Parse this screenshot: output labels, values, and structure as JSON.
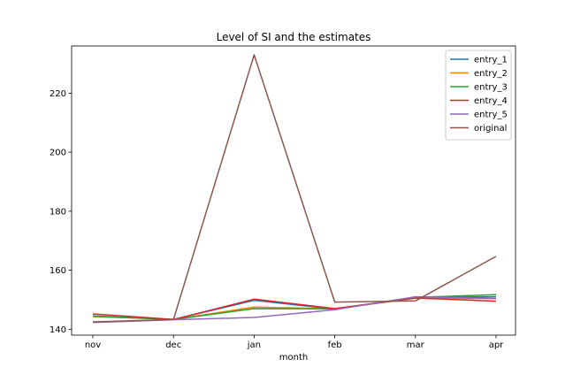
{
  "chart_data": {
    "type": "line",
    "title": "Level of SI and the estimates",
    "xlabel": "month",
    "ylabel": "",
    "categories": [
      "nov",
      "dec",
      "jan",
      "feb",
      "mar",
      "apr"
    ],
    "yticks": [
      140,
      160,
      180,
      200,
      220
    ],
    "ylim": [
      138,
      236
    ],
    "grid": false,
    "legend_position": "top-right",
    "series": [
      {
        "name": "entry_1",
        "color": "#1f77b4",
        "values": [
          144.5,
          143.3,
          149.8,
          146.8,
          150.8,
          151.0
        ]
      },
      {
        "name": "entry_2",
        "color": "#ff7f0e",
        "values": [
          144.3,
          143.3,
          147.5,
          146.9,
          150.5,
          150.4
        ]
      },
      {
        "name": "entry_3",
        "color": "#2ca02c",
        "values": [
          144.4,
          143.3,
          147.0,
          146.9,
          150.8,
          151.7
        ]
      },
      {
        "name": "entry_4",
        "color": "#d62728",
        "values": [
          145.2,
          143.3,
          150.2,
          147.0,
          150.6,
          149.5
        ]
      },
      {
        "name": "entry_5",
        "color": "#9467bd",
        "values": [
          142.3,
          143.2,
          144.0,
          146.6,
          151.0,
          150.4
        ]
      },
      {
        "name": "original",
        "color": "#8c564b",
        "values": [
          142.5,
          143.3,
          233.0,
          149.2,
          149.6,
          164.7
        ]
      }
    ]
  }
}
